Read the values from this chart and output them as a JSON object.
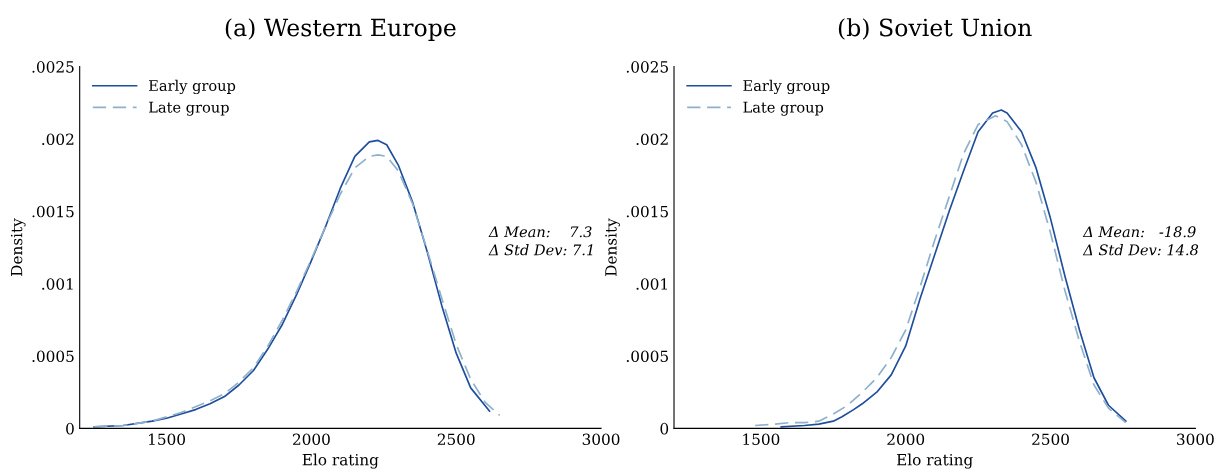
{
  "chart_data": [
    {
      "type": "line",
      "title": "(a) Western Europe",
      "xlabel": "Elo rating",
      "ylabel": "Density",
      "xlim": [
        1200,
        3000
      ],
      "xticks": [
        1500,
        2000,
        2500,
        3000
      ],
      "ylim": [
        0,
        0.0025
      ],
      "yticks": [
        {
          "value": 0,
          "label": "0"
        },
        {
          "value": 0.0005,
          "label": ".0005"
        },
        {
          "value": 0.001,
          "label": ".001"
        },
        {
          "value": 0.0015,
          "label": ".0015"
        },
        {
          "value": 0.002,
          "label": ".002"
        },
        {
          "value": 0.0025,
          "label": ".0025"
        }
      ],
      "grid": false,
      "legend": "top left",
      "annotations": [
        "Δ Mean:    7.3",
        "Δ Std Dev: 7.1"
      ],
      "series": [
        {
          "name": "Early group",
          "color": "#1f4e9c",
          "line_style": "solid",
          "x": [
            1250,
            1350,
            1450,
            1500,
            1550,
            1600,
            1650,
            1700,
            1750,
            1800,
            1850,
            1900,
            1950,
            2000,
            2050,
            2100,
            2150,
            2200,
            2230,
            2260,
            2300,
            2350,
            2400,
            2450,
            2500,
            2550,
            2615
          ],
          "values": [
            1e-05,
            2e-05,
            5e-05,
            7e-05,
            0.0001,
            0.00013,
            0.00017,
            0.00022,
            0.0003,
            0.0004,
            0.00055,
            0.00072,
            0.00093,
            0.00116,
            0.0014,
            0.00166,
            0.00188,
            0.00198,
            0.00199,
            0.00196,
            0.00182,
            0.00156,
            0.00122,
            0.00085,
            0.00052,
            0.00028,
            0.00012
          ]
        },
        {
          "name": "Late group",
          "color": "#8fb0cc",
          "line_style": "dashed",
          "x": [
            1250,
            1350,
            1450,
            1500,
            1550,
            1600,
            1650,
            1700,
            1750,
            1800,
            1850,
            1900,
            1950,
            2000,
            2050,
            2100,
            2150,
            2200,
            2230,
            2260,
            2300,
            2350,
            2400,
            2450,
            2500,
            2550,
            2600,
            2650
          ],
          "values": [
            1e-05,
            2e-05,
            5e-05,
            8e-05,
            0.00011,
            0.00015,
            0.00019,
            0.00024,
            0.00032,
            0.00042,
            0.00057,
            0.00075,
            0.00095,
            0.00117,
            0.0014,
            0.00162,
            0.0018,
            0.00188,
            0.00189,
            0.00188,
            0.00178,
            0.00155,
            0.00123,
            0.0009,
            0.00058,
            0.00034,
            0.00018,
            9e-05
          ]
        }
      ]
    },
    {
      "type": "line",
      "title": "(b) Soviet Union",
      "xlabel": "Elo rating",
      "ylabel": "Density",
      "xlim": [
        1200,
        3000
      ],
      "xticks": [
        1500,
        2000,
        2500,
        3000
      ],
      "ylim": [
        0,
        0.0025
      ],
      "yticks": [
        {
          "value": 0,
          "label": "0"
        },
        {
          "value": 0.0005,
          "label": ".0005"
        },
        {
          "value": 0.001,
          "label": ".001"
        },
        {
          "value": 0.0015,
          "label": ".0015"
        },
        {
          "value": 0.002,
          "label": ".002"
        },
        {
          "value": 0.0025,
          "label": ".0025"
        }
      ],
      "grid": false,
      "legend": "top left",
      "annotations": [
        "Δ Mean:   -18.9",
        "Δ Std Dev: 14.8"
      ],
      "series": [
        {
          "name": "Early group",
          "color": "#1f4e9c",
          "line_style": "solid",
          "x": [
            1570,
            1650,
            1700,
            1750,
            1780,
            1820,
            1850,
            1900,
            1950,
            2000,
            2050,
            2100,
            2150,
            2200,
            2250,
            2300,
            2330,
            2350,
            2400,
            2450,
            2500,
            2550,
            2600,
            2650,
            2700,
            2760
          ],
          "values": [
            1e-05,
            2e-05,
            3e-05,
            5e-05,
            8e-05,
            0.00013,
            0.00017,
            0.00025,
            0.00037,
            0.00057,
            0.0009,
            0.0012,
            0.0015,
            0.00178,
            0.00205,
            0.00218,
            0.0022,
            0.00218,
            0.00205,
            0.0018,
            0.00145,
            0.00105,
            0.00068,
            0.00035,
            0.00016,
            5e-05
          ]
        },
        {
          "name": "Late group",
          "color": "#8fb0cc",
          "line_style": "dashed",
          "x": [
            1480,
            1550,
            1600,
            1650,
            1700,
            1750,
            1800,
            1850,
            1900,
            1950,
            2000,
            2050,
            2100,
            2150,
            2200,
            2250,
            2310,
            2350,
            2400,
            2450,
            2500,
            2550,
            2600,
            2650,
            2700,
            2760
          ],
          "values": [
            2e-05,
            3e-05,
            4e-05,
            4e-05,
            5e-05,
            0.0001,
            0.00016,
            0.00025,
            0.00035,
            0.00049,
            0.00068,
            0.00098,
            0.0013,
            0.0016,
            0.0019,
            0.0021,
            0.00216,
            0.00212,
            0.00196,
            0.0017,
            0.00135,
            0.00095,
            0.0006,
            0.0003,
            0.00014,
            4e-05
          ]
        }
      ]
    }
  ]
}
